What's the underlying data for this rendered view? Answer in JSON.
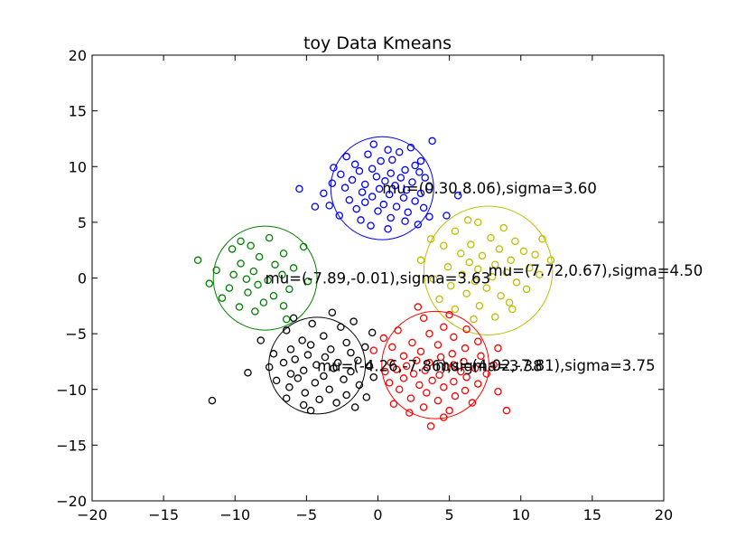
{
  "chart_data": {
    "type": "scatter",
    "title": "toy Data Kmeans",
    "xlabel": "",
    "ylabel": "",
    "xlim": [
      -20,
      20
    ],
    "ylim": [
      -20,
      20
    ],
    "xticks": [
      -20,
      -15,
      -10,
      -5,
      0,
      5,
      10,
      15,
      20
    ],
    "yticks": [
      -20,
      -15,
      -10,
      -5,
      0,
      5,
      10,
      15,
      20
    ],
    "grid": false,
    "legend": "none",
    "marker": "open-circle",
    "clusters": [
      {
        "color": "#0000ff",
        "center": [
          0.3,
          8.06
        ],
        "sigma": 3.6,
        "annotation": "mu=(0.30,8.06),sigma=3.60",
        "points": [
          [
            3.8,
            12.3
          ],
          [
            -0.3,
            12.0
          ],
          [
            2.3,
            11.7
          ],
          [
            0.7,
            11.5
          ],
          [
            1.5,
            11.3
          ],
          [
            -0.7,
            11.1
          ],
          [
            -2.2,
            10.9
          ],
          [
            1.0,
            10.6
          ],
          [
            3.0,
            10.5
          ],
          [
            0.2,
            10.5
          ],
          [
            -1.6,
            10.2
          ],
          [
            2.6,
            10.1
          ],
          [
            -3.1,
            9.9
          ],
          [
            -0.4,
            9.8
          ],
          [
            1.9,
            9.7
          ],
          [
            -1.3,
            9.6
          ],
          [
            0.9,
            9.4
          ],
          [
            2.9,
            9.5
          ],
          [
            -2.6,
            9.3
          ],
          [
            -0.1,
            9.1
          ],
          [
            1.6,
            9.0
          ],
          [
            3.3,
            9.0
          ],
          [
            -1.8,
            8.8
          ],
          [
            0.5,
            8.7
          ],
          [
            2.4,
            8.6
          ],
          [
            -3.2,
            8.5
          ],
          [
            -0.9,
            8.4
          ],
          [
            1.2,
            8.3
          ],
          [
            3.6,
            8.2
          ],
          [
            -2.3,
            8.1
          ],
          [
            -5.5,
            8.0
          ],
          [
            0.1,
            8.0
          ],
          [
            2.0,
            7.9
          ],
          [
            -1.1,
            7.7
          ],
          [
            3.0,
            7.6
          ],
          [
            -3.8,
            7.6
          ],
          [
            0.8,
            7.5
          ],
          [
            -0.4,
            7.3
          ],
          [
            1.8,
            7.2
          ],
          [
            5.6,
            7.4
          ],
          [
            -2.0,
            7.0
          ],
          [
            2.6,
            6.9
          ],
          [
            -0.9,
            6.8
          ],
          [
            0.4,
            6.6
          ],
          [
            -3.4,
            6.5
          ],
          [
            1.3,
            6.4
          ],
          [
            3.2,
            6.3
          ],
          [
            -1.5,
            6.2
          ],
          [
            -4.4,
            6.4
          ],
          [
            0.0,
            6.0
          ],
          [
            2.1,
            5.9
          ],
          [
            -2.7,
            5.6
          ],
          [
            0.9,
            5.4
          ],
          [
            3.6,
            5.5
          ],
          [
            -1.2,
            5.2
          ],
          [
            4.8,
            5.6
          ],
          [
            1.9,
            5.1
          ],
          [
            -0.5,
            4.7
          ],
          [
            2.8,
            4.8
          ],
          [
            0.7,
            4.4
          ]
        ]
      },
      {
        "color": "#bfbf00",
        "center": [
          7.72,
          0.67
        ],
        "sigma": 4.5,
        "annotation": "mu=(7.72,0.67),sigma=4.50",
        "points": [
          [
            6.3,
            5.2
          ],
          [
            7.0,
            5.0
          ],
          [
            8.8,
            4.5
          ],
          [
            5.4,
            4.2
          ],
          [
            3.7,
            3.5
          ],
          [
            7.9,
            3.6
          ],
          [
            9.6,
            3.3
          ],
          [
            11.5,
            3.5
          ],
          [
            6.5,
            3.0
          ],
          [
            4.6,
            2.9
          ],
          [
            8.5,
            2.6
          ],
          [
            10.2,
            2.4
          ],
          [
            5.8,
            2.2
          ],
          [
            7.3,
            2.0
          ],
          [
            11.0,
            2.1
          ],
          [
            3.0,
            1.6
          ],
          [
            9.3,
            1.6
          ],
          [
            6.4,
            1.4
          ],
          [
            12.1,
            1.6
          ],
          [
            8.2,
            1.2
          ],
          [
            4.9,
            1.0
          ],
          [
            10.6,
            0.9
          ],
          [
            7.0,
            0.8
          ],
          [
            9.0,
            0.5
          ],
          [
            5.9,
            0.3
          ],
          [
            11.3,
            0.3
          ],
          [
            8.0,
            0.1
          ],
          [
            3.9,
            -0.1
          ],
          [
            6.8,
            -0.3
          ],
          [
            9.7,
            -0.4
          ],
          [
            5.1,
            -0.7
          ],
          [
            7.6,
            -0.9
          ],
          [
            10.4,
            -1.0
          ],
          [
            6.2,
            -1.4
          ],
          [
            8.6,
            -1.6
          ],
          [
            4.3,
            -1.9
          ],
          [
            9.2,
            -2.2
          ],
          [
            7.1,
            -2.5
          ],
          [
            5.4,
            -2.8
          ],
          [
            8.2,
            -3.5
          ],
          [
            6.7,
            -3.7
          ],
          [
            9.4,
            -2.8
          ]
        ]
      },
      {
        "color": "#008000",
        "center": [
          -7.89,
          -0.01
        ],
        "sigma": 3.63,
        "annotation": "mu=(-7.89,-0.01),sigma=3.63",
        "points": [
          [
            -7.6,
            3.6
          ],
          [
            -9.6,
            3.3
          ],
          [
            -8.9,
            2.9
          ],
          [
            -5.2,
            2.8
          ],
          [
            -10.2,
            2.6
          ],
          [
            -6.6,
            2.2
          ],
          [
            -8.3,
            1.9
          ],
          [
            -12.6,
            1.6
          ],
          [
            -9.6,
            1.3
          ],
          [
            -7.2,
            1.2
          ],
          [
            -5.9,
            0.9
          ],
          [
            -11.3,
            0.7
          ],
          [
            -8.7,
            0.6
          ],
          [
            -10.1,
            0.3
          ],
          [
            -6.7,
            0.3
          ],
          [
            -9.2,
            -0.1
          ],
          [
            -7.7,
            -0.2
          ],
          [
            -4.9,
            -0.3
          ],
          [
            -11.8,
            -0.5
          ],
          [
            -8.4,
            -0.6
          ],
          [
            -10.4,
            -0.9
          ],
          [
            -6.2,
            -1.0
          ],
          [
            -9.1,
            -1.3
          ],
          [
            -7.3,
            -1.6
          ],
          [
            -10.9,
            -1.8
          ],
          [
            -8.0,
            -2.2
          ],
          [
            -6.6,
            -2.5
          ],
          [
            -9.7,
            -2.6
          ],
          [
            -8.6,
            -3.0
          ],
          [
            -6.4,
            -3.7
          ]
        ]
      },
      {
        "color": "#000000",
        "center": [
          -4.26,
          -7.86
        ],
        "sigma": 3.38,
        "annotation": "mu=(-4.26,-7.86),sigma=3.38",
        "points": [
          [
            -3.2,
            -3.1
          ],
          [
            -5.9,
            -3.6
          ],
          [
            -1.7,
            -3.9
          ],
          [
            -4.6,
            -4.1
          ],
          [
            -2.6,
            -4.4
          ],
          [
            -6.4,
            -4.7
          ],
          [
            -0.4,
            -4.9
          ],
          [
            -3.8,
            -5.2
          ],
          [
            -5.3,
            -5.6
          ],
          [
            -2.2,
            -5.8
          ],
          [
            -8.2,
            -5.6
          ],
          [
            -4.7,
            -6.0
          ],
          [
            -0.9,
            -6.2
          ],
          [
            -3.3,
            -6.4
          ],
          [
            -6.1,
            -6.4
          ],
          [
            -1.9,
            -6.7
          ],
          [
            -7.3,
            -6.8
          ],
          [
            -4.9,
            -6.9
          ],
          [
            -3.7,
            -7.1
          ],
          [
            -5.8,
            -7.3
          ],
          [
            -1.4,
            -7.4
          ],
          [
            -2.8,
            -7.6
          ],
          [
            -6.6,
            -7.6
          ],
          [
            -4.3,
            -7.8
          ],
          [
            -0.6,
            -7.9
          ],
          [
            -7.6,
            -8.0
          ],
          [
            -3.1,
            -8.1
          ],
          [
            -5.2,
            -8.3
          ],
          [
            -1.9,
            -8.4
          ],
          [
            -6.1,
            -8.6
          ],
          [
            -9.1,
            -8.5
          ],
          [
            -3.8,
            -8.8
          ],
          [
            -0.3,
            -8.9
          ],
          [
            -5.6,
            -9.0
          ],
          [
            -2.4,
            -9.1
          ],
          [
            -7.1,
            -9.2
          ],
          [
            -4.4,
            -9.4
          ],
          [
            -1.3,
            -9.6
          ],
          [
            -6.2,
            -9.8
          ],
          [
            -3.4,
            -10.0
          ],
          [
            -5.1,
            -10.3
          ],
          [
            -2.2,
            -10.5
          ],
          [
            -0.8,
            -10.7
          ],
          [
            -4.1,
            -10.9
          ],
          [
            -6.4,
            -10.8
          ],
          [
            -2.9,
            -11.2
          ],
          [
            -5.2,
            -11.4
          ],
          [
            -1.6,
            -11.6
          ],
          [
            -4.7,
            -11.9
          ],
          [
            -11.6,
            -11.0
          ]
        ]
      },
      {
        "color": "#ff0000",
        "center": [
          4.02,
          -7.81
        ],
        "sigma": 3.75,
        "annotation": "mu=(4.02,-7.81),sigma=3.75",
        "points": [
          [
            2.8,
            -2.6
          ],
          [
            5.0,
            -3.3
          ],
          [
            3.2,
            -3.6
          ],
          [
            4.6,
            -4.4
          ],
          [
            1.4,
            -4.7
          ],
          [
            6.2,
            -4.6
          ],
          [
            3.6,
            -5.0
          ],
          [
            0.4,
            -5.4
          ],
          [
            5.3,
            -5.3
          ],
          [
            2.4,
            -5.8
          ],
          [
            7.0,
            -5.7
          ],
          [
            4.2,
            -6.0
          ],
          [
            1.0,
            -6.2
          ],
          [
            6.1,
            -6.3
          ],
          [
            3.0,
            -6.6
          ],
          [
            8.4,
            -6.3
          ],
          [
            5.2,
            -6.8
          ],
          [
            -0.3,
            -6.5
          ],
          [
            1.8,
            -7.0
          ],
          [
            4.4,
            -7.1
          ],
          [
            7.2,
            -7.0
          ],
          [
            2.7,
            -7.4
          ],
          [
            6.0,
            -7.5
          ],
          [
            0.9,
            -7.6
          ],
          [
            3.6,
            -7.6
          ],
          [
            5.3,
            -7.8
          ],
          [
            8.1,
            -7.8
          ],
          [
            2.0,
            -7.9
          ],
          [
            4.8,
            -8.0
          ],
          [
            6.8,
            -8.1
          ],
          [
            1.3,
            -8.2
          ],
          [
            3.3,
            -8.3
          ],
          [
            5.8,
            -8.4
          ],
          [
            0.5,
            -8.4
          ],
          [
            2.5,
            -8.6
          ],
          [
            4.3,
            -8.7
          ],
          [
            7.6,
            -8.6
          ],
          [
            6.2,
            -8.9
          ],
          [
            1.8,
            -9.0
          ],
          [
            3.8,
            -9.2
          ],
          [
            5.3,
            -9.3
          ],
          [
            0.8,
            -9.4
          ],
          [
            2.9,
            -9.6
          ],
          [
            7.0,
            -9.5
          ],
          [
            4.6,
            -9.8
          ],
          [
            6.1,
            -10.1
          ],
          [
            1.5,
            -10.0
          ],
          [
            3.4,
            -10.3
          ],
          [
            8.4,
            -10.2
          ],
          [
            5.4,
            -10.6
          ],
          [
            2.3,
            -10.8
          ],
          [
            4.2,
            -11.0
          ],
          [
            6.6,
            -11.2
          ],
          [
            1.1,
            -11.3
          ],
          [
            3.2,
            -11.6
          ],
          [
            5.0,
            -11.9
          ],
          [
            9.0,
            -11.9
          ],
          [
            2.2,
            -12.1
          ],
          [
            4.6,
            -12.5
          ],
          [
            3.7,
            -13.3
          ]
        ]
      }
    ]
  }
}
